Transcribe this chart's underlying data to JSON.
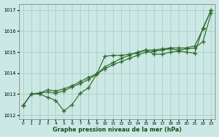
{
  "title": "Graphe pression niveau de la mer (hPa)",
  "bg_color": "#cce8e4",
  "line_color": "#2d6b2d",
  "grid_color": "#a8ccc8",
  "xlim": [
    -0.5,
    23.5
  ],
  "ylim": [
    1011.8,
    1017.3
  ],
  "yticks": [
    1012,
    1013,
    1014,
    1015,
    1016,
    1017
  ],
  "xticks": [
    0,
    1,
    2,
    3,
    4,
    5,
    6,
    7,
    8,
    9,
    10,
    11,
    12,
    13,
    14,
    15,
    16,
    17,
    18,
    19,
    20,
    21,
    22,
    23
  ],
  "series": [
    [
      1012.45,
      1013.0,
      1013.0,
      1012.85,
      1012.7,
      1012.2,
      1012.5,
      1013.05,
      1013.3,
      1013.95,
      1014.8,
      1014.85,
      1014.85,
      1014.9,
      1014.95,
      1015.1,
      1014.9,
      1014.9,
      1015.0,
      1015.05,
      1015.0,
      1014.95,
      1016.15,
      1017.0
    ],
    [
      1012.45,
      1013.0,
      1013.05,
      1013.1,
      1013.05,
      1013.15,
      1013.35,
      1013.5,
      1013.7,
      1013.95,
      1014.2,
      1014.4,
      1014.55,
      1014.7,
      1014.85,
      1015.0,
      1015.05,
      1015.1,
      1015.15,
      1015.1,
      1015.15,
      1015.2,
      1015.5,
      1016.85
    ],
    [
      1012.45,
      1013.0,
      1013.05,
      1013.2,
      1013.15,
      1013.25,
      1013.4,
      1013.6,
      1013.8,
      1013.95,
      1014.3,
      1014.5,
      1014.7,
      1014.85,
      1015.0,
      1015.1,
      1015.1,
      1015.15,
      1015.2,
      1015.2,
      1015.2,
      1015.3,
      1016.1,
      1017.0
    ]
  ]
}
